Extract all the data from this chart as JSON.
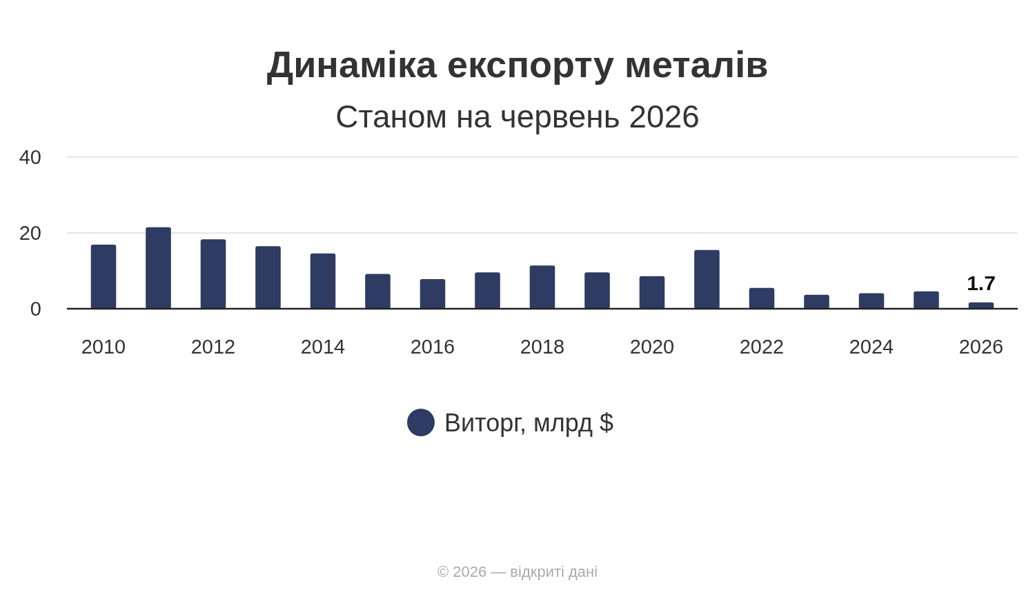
{
  "chart_data": {
    "type": "bar",
    "title": "Динаміка експорту металів",
    "subtitle": "Станом на червень 2026",
    "categories": [
      "2010",
      null,
      "2012",
      null,
      "2014",
      null,
      "2016",
      null,
      "2018",
      null,
      "2020",
      null,
      "2022",
      null,
      "2024",
      null,
      "2026"
    ],
    "series": [
      {
        "name": "Виторг, млрд $",
        "color": "#2e3b62",
        "values": [
          16.9,
          21.5,
          18.3,
          16.5,
          14.6,
          9.2,
          7.8,
          9.6,
          11.4,
          9.6,
          8.6,
          15.5,
          5.5,
          3.7,
          4.1,
          4.6,
          1.7
        ],
        "value_labels": [
          null,
          null,
          null,
          null,
          null,
          null,
          null,
          null,
          null,
          null,
          null,
          null,
          null,
          null,
          null,
          null,
          "1.7"
        ]
      }
    ],
    "ylim": [
      0,
      40
    ],
    "yticks": [
      0,
      20,
      40
    ],
    "grid": "y",
    "legend": "bottom",
    "annotations": [
      "© 2026 — відкриті дані"
    ]
  }
}
